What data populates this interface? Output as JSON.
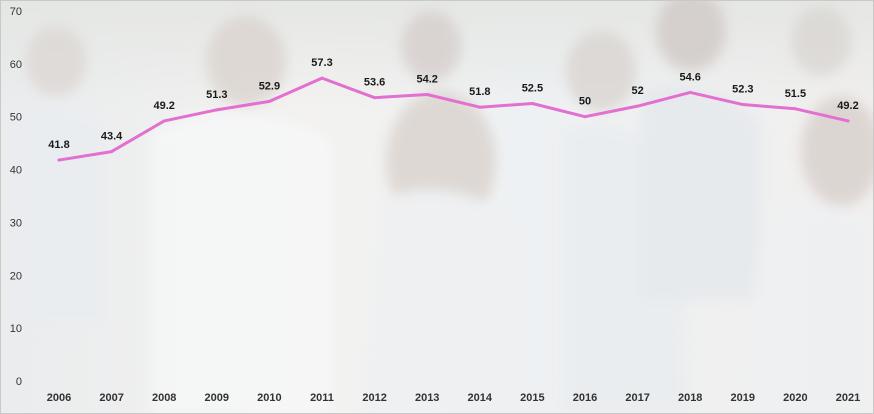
{
  "chart_data": {
    "type": "line",
    "title": "",
    "xlabel": "",
    "ylabel": "",
    "categories": [
      "2006",
      "2007",
      "2008",
      "2009",
      "2010",
      "2011",
      "2012",
      "2013",
      "2014",
      "2015",
      "2016",
      "2017",
      "2018",
      "2019",
      "2020",
      "2021"
    ],
    "series": [
      {
        "values": [
          41.8,
          43.4,
          49.2,
          51.3,
          52.9,
          57.3,
          53.6,
          54.2,
          51.8,
          52.5,
          50,
          52,
          54.6,
          52.3,
          51.5,
          49.2
        ]
      }
    ],
    "data_labels": [
      "41.8",
      "43.4",
      "49.2",
      "51.3",
      "52.9",
      "57.3",
      "53.6",
      "54.2",
      "51.8",
      "52.5",
      "50",
      "52",
      "54.6",
      "52.3",
      "51.5",
      "49.2"
    ],
    "ylim": [
      0,
      70
    ],
    "yticks": [
      "0",
      "10",
      "20",
      "30",
      "40",
      "50",
      "60",
      "70"
    ],
    "grid": false,
    "legend": "none",
    "line_color": "#e36fd0",
    "background": "faded photo of students in school uniforms"
  }
}
